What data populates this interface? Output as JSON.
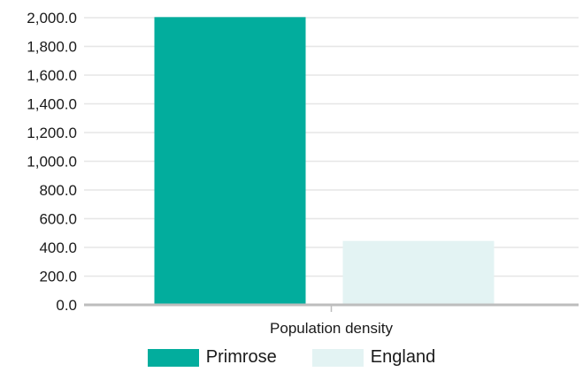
{
  "chart_data": {
    "type": "bar",
    "categories": [
      "Population density"
    ],
    "series": [
      {
        "name": "Primrose",
        "values": [
          2004
        ],
        "color": "#02ad9d"
      },
      {
        "name": "England",
        "values": [
          445
        ],
        "color": "#e3f3f3"
      }
    ],
    "yticks": [
      "0.0",
      "200.0",
      "400.0",
      "600.0",
      "800.0",
      "1,000.0",
      "1,200.0",
      "1,400.0",
      "1,600.0",
      "1,800.0",
      "2,000.0"
    ],
    "ylim": [
      0,
      2000
    ],
    "grid": true,
    "legend_position": "bottom-center",
    "gridline_color": "#e6e6e6",
    "axis_color": "#bdbdbd"
  }
}
